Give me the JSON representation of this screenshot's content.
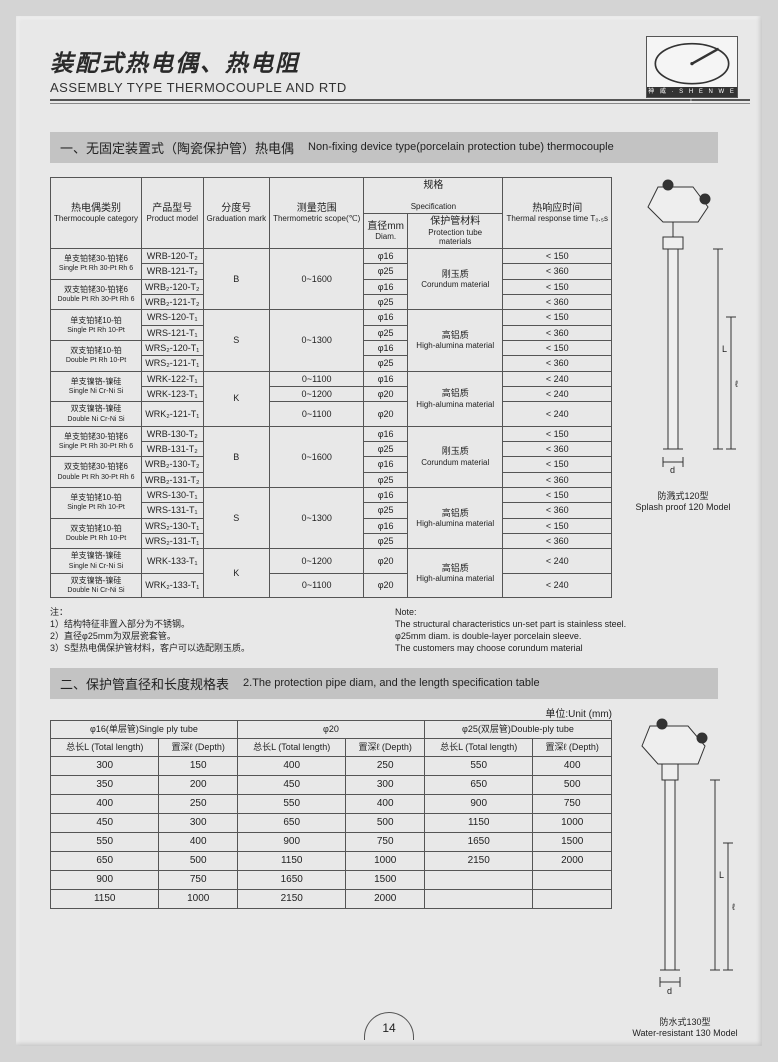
{
  "header": {
    "title_cn": "装配式热电偶、热电阻",
    "title_en": "ASSEMBLY TYPE THERMOCOUPLE AND RTD",
    "logo_strip": "神 威 · S H E N W E I"
  },
  "section1": {
    "cn": "一、无固定装置式（陶瓷保护管）热电偶",
    "en": "Non-fixing device type(porcelain protection tube) thermocouple"
  },
  "table1": {
    "head": {
      "cat_cn": "热电偶类别",
      "cat_en": "Thermocouple category",
      "model_cn": "产品型号",
      "model_en": "Product model",
      "grad_cn": "分度号",
      "grad_en": "Graduation mark",
      "scope_cn": "测量范围",
      "scope_en": "Thermometric scope(℃)",
      "spec_cn": "规格",
      "spec_en": "Specification",
      "diam_cn": "直径mm",
      "diam_en": "Diam.",
      "mat_cn": "保护管材料",
      "mat_en": "Protection tube materials",
      "resp_cn": "热响应时间",
      "resp_en": "Thermal response time T₀.₅s"
    },
    "groups": [
      {
        "grad": "B",
        "scope": "0~1600",
        "mat_cn": "刚玉质",
        "mat_en": "Corundum material",
        "rows": [
          {
            "cat_cn": "单支铂铑30-铂铑6",
            "cat_en": "Single Pt Rh 30-Pt Rh 6",
            "cat_span": 2,
            "model": "WRB-120-T₂",
            "diam": "φ16",
            "resp": "< 150"
          },
          {
            "model": "WRB-121-T₂",
            "diam": "φ25",
            "resp": "< 360"
          },
          {
            "cat_cn": "双支铂铑30-铂铑6",
            "cat_en": "Double Pt Rh 30-Pt Rh 6",
            "cat_span": 2,
            "model": "WRB₂-120-T₂",
            "diam": "φ16",
            "resp": "< 150"
          },
          {
            "model": "WRB₂-121-T₂",
            "diam": "φ25",
            "resp": "< 360"
          }
        ]
      },
      {
        "grad": "S",
        "scope": "0~1300",
        "mat_cn": "高铝质",
        "mat_en": "High-alumina material",
        "rows": [
          {
            "cat_cn": "单支铂铑10-铂",
            "cat_en": "Single Pt Rh 10-Pt",
            "cat_span": 2,
            "model": "WRS-120-T₁",
            "diam": "φ16",
            "resp": "< 150"
          },
          {
            "model": "WRS-121-T₁",
            "diam": "φ25",
            "resp": "< 360"
          },
          {
            "cat_cn": "双支铂铑10-铂",
            "cat_en": "Double Pt Rh 10-Pt",
            "cat_span": 2,
            "model": "WRS₂-120-T₁",
            "diam": "φ16",
            "resp": "< 150"
          },
          {
            "model": "WRS₂-121-T₁",
            "diam": "φ25",
            "resp": "< 360"
          }
        ]
      },
      {
        "grad": "K",
        "scope_per_row": true,
        "mat_cn": "高铝质",
        "mat_en": "High-alumina material",
        "rows": [
          {
            "cat_cn": "单支镍铬-镍硅",
            "cat_en": "Single Ni Cr-Ni Si",
            "cat_span": 2,
            "model": "WRK-122-T₁",
            "scope": "0~1100",
            "diam": "φ16",
            "resp": "< 240"
          },
          {
            "model": "WRK-123-T₁",
            "scope": "0~1200",
            "diam": "φ20",
            "resp": "< 240"
          },
          {
            "cat_cn": "双支镍铬-镍硅",
            "cat_en": "Double Ni Cr-Ni Si",
            "cat_span": 1,
            "model": "WRK₂-121-T₁",
            "scope": "0~1100",
            "diam": "φ20",
            "resp": "< 240"
          }
        ]
      },
      {
        "grad": "B",
        "scope": "0~1600",
        "mat_cn": "刚玉质",
        "mat_en": "Corundum material",
        "rows": [
          {
            "cat_cn": "单支铂铑30-铂铑6",
            "cat_en": "Single Pt Rh 30-Pt Rh 6",
            "cat_span": 2,
            "model": "WRB-130-T₂",
            "diam": "φ16",
            "resp": "< 150"
          },
          {
            "model": "WRB-131-T₂",
            "diam": "φ25",
            "resp": "< 360"
          },
          {
            "cat_cn": "双支铂铑30-铂铑6",
            "cat_en": "Double Pt Rh 30-Pt Rh 6",
            "cat_span": 2,
            "model": "WRB₂-130-T₂",
            "diam": "φ16",
            "resp": "< 150"
          },
          {
            "model": "WRB₂-131-T₂",
            "diam": "φ25",
            "resp": "< 360"
          }
        ]
      },
      {
        "grad": "S",
        "scope": "0~1300",
        "mat_cn": "高铝质",
        "mat_en": "High-alumina material",
        "rows": [
          {
            "cat_cn": "单支铂铑10-铂",
            "cat_en": "Single Pt Rh 10-Pt",
            "cat_span": 2,
            "model": "WRS-130-T₁",
            "diam": "φ16",
            "resp": "< 150"
          },
          {
            "model": "WRS-131-T₁",
            "diam": "φ25",
            "resp": "< 360"
          },
          {
            "cat_cn": "双支铂铑10-铂",
            "cat_en": "Double Pt Rh 10-Pt",
            "cat_span": 2,
            "model": "WRS₂-130-T₁",
            "diam": "φ16",
            "resp": "< 150"
          },
          {
            "model": "WRS₂-131-T₁",
            "diam": "φ25",
            "resp": "< 360"
          }
        ]
      },
      {
        "grad": "K",
        "scope_per_row": true,
        "mat_cn": "高铝质",
        "mat_en": "High-alumina material",
        "rows": [
          {
            "cat_cn": "单支镍铬-镍硅",
            "cat_en": "Single Ni Cr-Ni Si",
            "cat_span": 1,
            "model": "WRK-133-T₁",
            "scope": "0~1200",
            "diam": "φ20",
            "resp": "< 240"
          },
          {
            "cat_cn": "双支镍铬-镍硅",
            "cat_en": "Double Ni Cr-Ni Si",
            "cat_span": 1,
            "model": "WRK₂-133-T₁",
            "scope": "0~1100",
            "diam": "φ20",
            "resp": "< 240"
          }
        ]
      }
    ]
  },
  "notes": {
    "cn_title": "注：",
    "cn_lines": [
      "1）结构特征非置入部分为不锈钢。",
      "2）直径φ25mm为双层瓷套管。",
      "3）S型热电偶保护管材料，客户可以选配刚玉质。"
    ],
    "en_title": "Note:",
    "en_lines": [
      "The structural characteristics un-set part is stainless steel.",
      "φ25mm diam. is double-layer porcelain sleeve.",
      "The customers may choose corundum material"
    ]
  },
  "section2": {
    "cn": "二、保护管直径和长度规格表",
    "en": "2.The protection pipe diam, and the length specification table"
  },
  "unit_label": "单位:Unit (mm)",
  "table2": {
    "head": {
      "g1": "φ16(单层管)Single ply tube",
      "g2": "φ20",
      "g3": "φ25(双层管)Double-ply tube",
      "tl": "总长L (Total length)",
      "dp": "置深ℓ (Depth)"
    },
    "rows": [
      [
        "300",
        "150",
        "400",
        "250",
        "550",
        "400"
      ],
      [
        "350",
        "200",
        "450",
        "300",
        "650",
        "500"
      ],
      [
        "400",
        "250",
        "550",
        "400",
        "900",
        "750"
      ],
      [
        "450",
        "300",
        "650",
        "500",
        "1150",
        "1000"
      ],
      [
        "550",
        "400",
        "900",
        "750",
        "1650",
        "1500"
      ],
      [
        "650",
        "500",
        "1150",
        "1000",
        "2150",
        "2000"
      ],
      [
        "900",
        "750",
        "1650",
        "1500",
        "",
        ""
      ],
      [
        "1150",
        "1000",
        "2150",
        "2000",
        "",
        ""
      ]
    ]
  },
  "diagrams": {
    "d1_cn": "防溅式120型",
    "d1_en": "Splash proof 120 Model",
    "d2_cn": "防水式130型",
    "d2_en": "Water-resistant 130 Model",
    "dim_d": "d",
    "dim_L": "L",
    "dim_l": "ℓ"
  },
  "page_number": "14",
  "colors": {
    "page_bg": "#e8e8e8",
    "outer_bg": "#d4d4d4",
    "section_bg": "#c3c3c3",
    "border": "#555555",
    "text": "#222222"
  }
}
